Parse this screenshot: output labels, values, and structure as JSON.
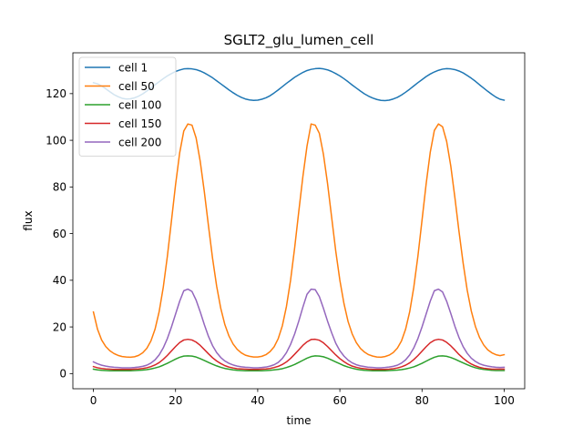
{
  "chart_data": {
    "type": "line",
    "title": "SGLT2_glu_lumen_cell",
    "xlabel": "time",
    "ylabel": "flux",
    "xlim": [
      -5,
      105
    ],
    "ylim": [
      -6.5,
      137.5
    ],
    "xticks": [
      0,
      20,
      40,
      60,
      80,
      100
    ],
    "yticks": [
      0,
      20,
      40,
      60,
      80,
      100,
      120
    ],
    "grid": false,
    "legend_position": "top-left",
    "x": [
      0,
      1,
      2,
      3,
      4,
      5,
      6,
      7,
      8,
      9,
      10,
      11,
      12,
      13,
      14,
      15,
      16,
      17,
      18,
      19,
      20,
      21,
      22,
      23,
      24,
      25,
      26,
      27,
      28,
      29,
      30,
      31,
      32,
      33,
      34,
      35,
      36,
      37,
      38,
      39,
      40,
      41,
      42,
      43,
      44,
      45,
      46,
      47,
      48,
      49,
      50,
      51,
      52,
      53,
      54,
      55,
      56,
      57,
      58,
      59,
      60,
      61,
      62,
      63,
      64,
      65,
      66,
      67,
      68,
      69,
      70,
      71,
      72,
      73,
      74,
      75,
      76,
      77,
      78,
      79,
      80,
      81,
      82,
      83,
      84,
      85,
      86,
      87,
      88,
      89,
      90,
      91,
      92,
      93,
      94,
      95,
      96,
      97,
      98,
      99,
      100
    ],
    "series": [
      {
        "name": "cell 1",
        "color": "#1f77b4",
        "values": [
          124.7,
          124.2,
          123.3,
          122.1,
          120.8,
          119.6,
          118.7,
          118.0,
          117.7,
          117.8,
          118.2,
          118.9,
          119.9,
          121.1,
          122.4,
          123.8,
          125.1,
          126.4,
          127.6,
          128.6,
          129.5,
          130.1,
          130.6,
          130.7,
          130.6,
          130.3,
          129.7,
          128.9,
          127.9,
          126.8,
          125.5,
          124.2,
          122.9,
          121.6,
          120.4,
          119.3,
          118.4,
          117.7,
          117.3,
          117.1,
          117.2,
          117.6,
          118.2,
          119.1,
          120.3,
          121.6,
          123.0,
          124.4,
          125.7,
          127.0,
          128.1,
          129.1,
          129.9,
          130.4,
          130.7,
          130.8,
          130.6,
          130.2,
          129.5,
          128.6,
          127.6,
          126.4,
          125.1,
          123.7,
          122.4,
          121.1,
          119.9,
          118.9,
          118.1,
          117.5,
          117.1,
          117.0,
          117.2,
          117.7,
          118.4,
          119.4,
          120.6,
          121.9,
          123.3,
          124.7,
          126.0,
          127.3,
          128.4,
          129.3,
          130.0,
          130.5,
          130.7,
          130.6,
          130.3,
          129.7,
          128.9,
          127.8,
          126.6,
          125.3,
          123.8,
          122.4,
          121.0,
          119.7,
          118.5,
          117.6,
          117.2
        ]
      },
      {
        "name": "cell 50",
        "color": "#ff7f0e",
        "values": [
          26.4,
          19.0,
          14.4,
          11.6,
          9.8,
          8.6,
          7.8,
          7.3,
          7.1,
          7.0,
          7.2,
          7.8,
          8.9,
          10.8,
          14.0,
          19.0,
          26.5,
          36.9,
          50.2,
          65.5,
          81.0,
          94.6,
          104.0,
          107.0,
          106.5,
          101.0,
          91.0,
          78.0,
          63.5,
          49.5,
          37.5,
          28.0,
          21.0,
          16.1,
          12.7,
          10.4,
          8.9,
          7.9,
          7.4,
          7.1,
          7.1,
          7.4,
          8.1,
          9.4,
          11.5,
          15.0,
          20.5,
          28.8,
          40.0,
          54.0,
          69.5,
          84.5,
          97.5,
          107.0,
          106.5,
          103.0,
          94.0,
          81.5,
          67.0,
          52.5,
          40.0,
          30.0,
          22.3,
          17.0,
          13.3,
          10.8,
          9.2,
          8.1,
          7.5,
          7.1,
          7.0,
          7.3,
          7.9,
          9.0,
          10.9,
          14.0,
          19.0,
          26.5,
          37.0,
          50.3,
          65.7,
          81.2,
          94.8,
          104.2,
          107.0,
          105.8,
          99.5,
          89.0,
          75.5,
          61.0,
          47.5,
          35.8,
          26.8,
          20.2,
          15.5,
          12.3,
          10.2,
          8.9,
          8.1,
          7.7,
          8.1
        ]
      },
      {
        "name": "cell 100",
        "color": "#2ca02c",
        "values": [
          1.9,
          1.6,
          1.4,
          1.3,
          1.2,
          1.2,
          1.2,
          1.2,
          1.2,
          1.2,
          1.3,
          1.4,
          1.5,
          1.7,
          2.0,
          2.4,
          2.9,
          3.6,
          4.4,
          5.3,
          6.2,
          7.0,
          7.5,
          7.6,
          7.5,
          7.1,
          6.4,
          5.6,
          4.8,
          4.0,
          3.3,
          2.7,
          2.2,
          1.9,
          1.6,
          1.4,
          1.3,
          1.2,
          1.2,
          1.2,
          1.2,
          1.2,
          1.3,
          1.4,
          1.6,
          1.8,
          2.1,
          2.6,
          3.2,
          3.9,
          4.8,
          5.7,
          6.6,
          7.3,
          7.6,
          7.5,
          7.2,
          6.6,
          5.8,
          5.0,
          4.2,
          3.4,
          2.8,
          2.3,
          1.9,
          1.6,
          1.4,
          1.3,
          1.2,
          1.2,
          1.2,
          1.2,
          1.3,
          1.4,
          1.5,
          1.7,
          2.0,
          2.4,
          2.9,
          3.6,
          4.4,
          5.3,
          6.2,
          7.0,
          7.5,
          7.6,
          7.4,
          6.9,
          6.2,
          5.4,
          4.6,
          3.8,
          3.1,
          2.5,
          2.1,
          1.8,
          1.6,
          1.4,
          1.3,
          1.3,
          1.3
        ]
      },
      {
        "name": "cell 150",
        "color": "#d62728",
        "values": [
          3.0,
          2.5,
          2.2,
          2.0,
          1.9,
          1.8,
          1.8,
          1.8,
          1.8,
          1.8,
          1.9,
          2.0,
          2.2,
          2.5,
          3.0,
          3.7,
          4.7,
          6.1,
          7.8,
          9.7,
          11.6,
          13.3,
          14.4,
          14.7,
          14.4,
          13.5,
          12.1,
          10.3,
          8.5,
          6.8,
          5.4,
          4.3,
          3.4,
          2.8,
          2.4,
          2.1,
          2.0,
          1.9,
          1.8,
          1.8,
          1.8,
          1.9,
          2.0,
          2.2,
          2.6,
          3.1,
          3.9,
          5.0,
          6.5,
          8.3,
          10.2,
          12.1,
          13.6,
          14.6,
          14.7,
          14.3,
          13.2,
          11.6,
          9.8,
          8.0,
          6.4,
          5.1,
          4.0,
          3.2,
          2.7,
          2.3,
          2.1,
          1.9,
          1.8,
          1.8,
          1.8,
          1.8,
          1.9,
          2.1,
          2.4,
          2.9,
          3.6,
          4.6,
          6.0,
          7.7,
          9.6,
          11.5,
          13.2,
          14.3,
          14.7,
          14.4,
          13.4,
          11.9,
          10.1,
          8.2,
          6.6,
          5.2,
          4.1,
          3.3,
          2.7,
          2.3,
          2.1,
          1.9,
          1.9,
          1.9,
          1.9
        ]
      },
      {
        "name": "cell 200",
        "color": "#9467bd",
        "values": [
          5.0,
          4.2,
          3.6,
          3.2,
          2.9,
          2.7,
          2.6,
          2.5,
          2.5,
          2.5,
          2.6,
          2.8,
          3.1,
          3.6,
          4.5,
          5.9,
          8.0,
          11.0,
          15.0,
          20.0,
          25.5,
          31.0,
          35.5,
          36.2,
          35.2,
          31.5,
          26.5,
          21.0,
          16.0,
          12.0,
          9.0,
          6.9,
          5.4,
          4.4,
          3.7,
          3.2,
          2.9,
          2.7,
          2.6,
          2.5,
          2.5,
          2.6,
          2.8,
          3.2,
          3.8,
          4.8,
          6.5,
          9.0,
          12.5,
          17.0,
          22.5,
          28.5,
          34.0,
          36.2,
          36.0,
          33.0,
          28.0,
          22.5,
          17.5,
          13.0,
          9.8,
          7.5,
          5.8,
          4.6,
          3.8,
          3.3,
          3.0,
          2.7,
          2.6,
          2.5,
          2.5,
          2.6,
          2.8,
          3.1,
          3.6,
          4.5,
          5.9,
          8.0,
          11.0,
          15.0,
          20.0,
          25.5,
          31.0,
          35.5,
          36.2,
          35.0,
          31.0,
          25.8,
          20.3,
          15.5,
          11.6,
          8.7,
          6.6,
          5.2,
          4.2,
          3.6,
          3.2,
          2.9,
          2.7,
          2.6,
          2.7
        ]
      }
    ]
  }
}
